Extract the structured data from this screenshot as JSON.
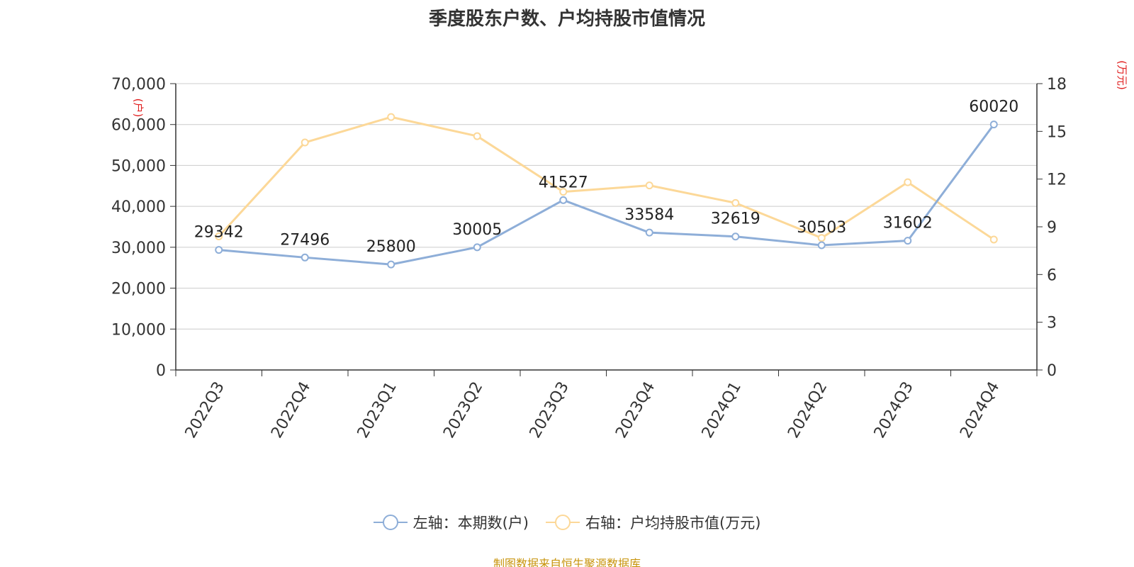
{
  "chart_data": {
    "type": "line",
    "title": "季度股东户数、户均持股市值情况",
    "categories": [
      "2022Q3",
      "2022Q4",
      "2023Q1",
      "2023Q2",
      "2023Q3",
      "2023Q4",
      "2024Q1",
      "2024Q2",
      "2024Q3",
      "2024Q4"
    ],
    "series": [
      {
        "name": "左轴：本期数(户)",
        "axis": "left",
        "color": "#8eaed8",
        "values": [
          29342,
          27496,
          25800,
          30005,
          41527,
          33584,
          32619,
          30503,
          31602,
          60020
        ],
        "labels": [
          "29342",
          "27496",
          "25800",
          "30005",
          "41527",
          "33584",
          "32619",
          "30503",
          "31602",
          "60020"
        ]
      },
      {
        "name": "右轴：户均持股市值(万元)",
        "axis": "right",
        "color": "#fcd898",
        "values": [
          8.4,
          14.3,
          15.9,
          14.7,
          11.2,
          11.6,
          10.5,
          8.3,
          11.8,
          8.2
        ]
      }
    ],
    "y_left": {
      "unit": "(户)",
      "ylim": [
        0,
        70000
      ],
      "ticks": [
        "0",
        "10,000",
        "20,000",
        "30,000",
        "40,000",
        "50,000",
        "60,000",
        "70,000"
      ]
    },
    "y_right": {
      "unit": "(万元)",
      "ylim": [
        0,
        18
      ],
      "ticks": [
        "0",
        "3",
        "6",
        "9",
        "12",
        "15",
        "18"
      ]
    },
    "grid": true,
    "legend_position": "bottom"
  },
  "footer": {
    "source": "制图数据来自恒生聚源数据库"
  }
}
